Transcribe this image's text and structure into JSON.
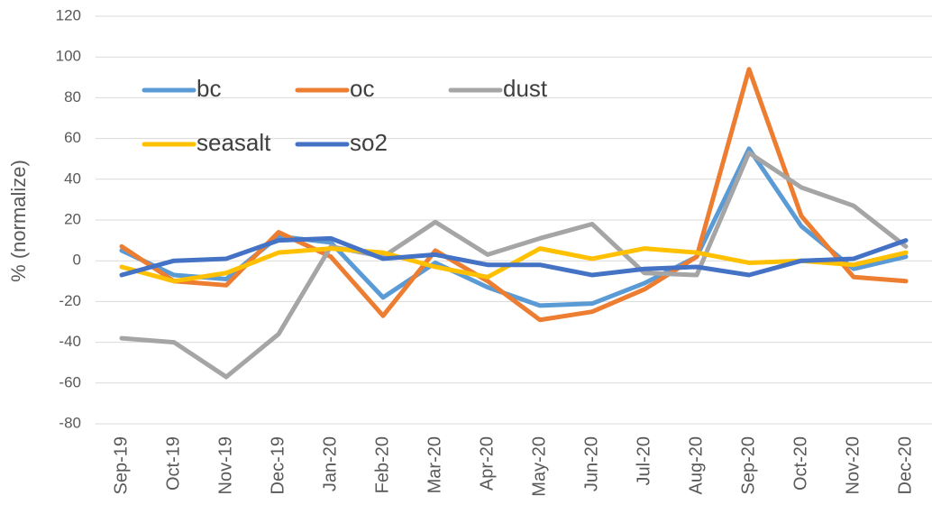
{
  "chart_data": {
    "type": "line",
    "y_label": "% (normalize)",
    "categories": [
      "Sep-19",
      "Oct-19",
      "Nov-19",
      "Dec-19",
      "Jan-20",
      "Feb-20",
      "Mar-20",
      "Apr-20",
      "May-20",
      "Jun-20",
      "Jul-20",
      "Aug-20",
      "Sep-20",
      "Oct-20",
      "Nov-20",
      "Dec-20"
    ],
    "series": [
      {
        "name": "bc",
        "color": "#5b9bd5",
        "values": [
          5,
          -7,
          -9,
          12,
          9,
          -18,
          -1,
          -13,
          -22,
          -21,
          -11,
          2,
          55,
          17,
          -4,
          2
        ]
      },
      {
        "name": "oc",
        "color": "#ed7d31",
        "values": [
          7,
          -10,
          -12,
          14,
          2,
          -27,
          5,
          -10,
          -29,
          -25,
          -14,
          2,
          94,
          22,
          -8,
          -10
        ]
      },
      {
        "name": "dust",
        "color": "#a5a5a5",
        "values": [
          -38,
          -40,
          -57,
          -36,
          7,
          2,
          19,
          3,
          11,
          18,
          -6,
          -7,
          53,
          36,
          27,
          7
        ]
      },
      {
        "name": "seasalt",
        "color": "#ffc000",
        "values": [
          -3,
          -10,
          -6,
          4,
          6,
          4,
          -3,
          -8,
          6,
          1,
          6,
          4,
          -1,
          0,
          -2,
          4
        ]
      },
      {
        "name": "so2",
        "color": "#4472c4",
        "values": [
          -7,
          0,
          1,
          10,
          11,
          1,
          3,
          -2,
          -2,
          -7,
          -4,
          -3,
          -7,
          0,
          1,
          10
        ]
      }
    ],
    "ylim": [
      -80,
      120
    ],
    "yticks": [
      -80,
      -60,
      -40,
      -20,
      0,
      20,
      40,
      60,
      80,
      100,
      120
    ],
    "grid": true
  }
}
